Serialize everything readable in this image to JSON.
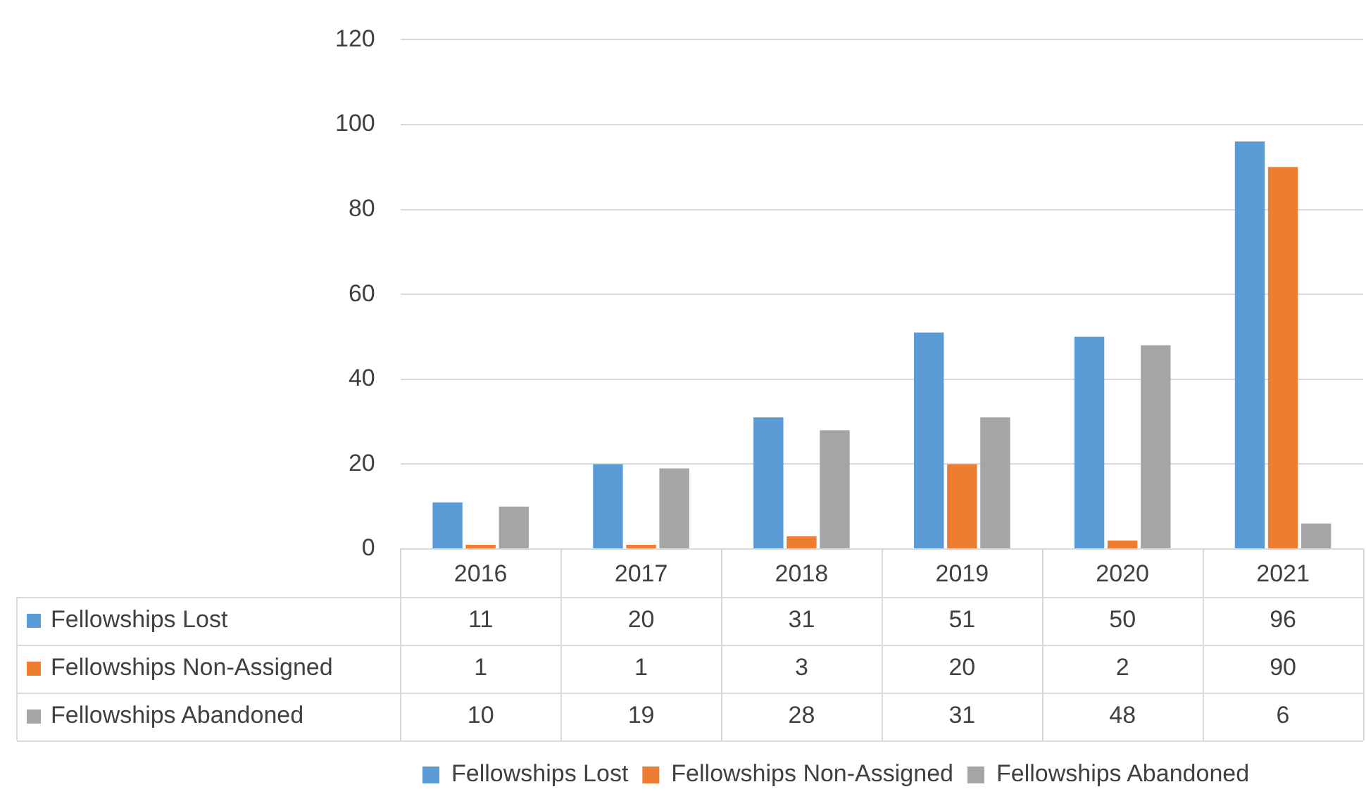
{
  "chart_data": {
    "type": "bar",
    "categories": [
      "2016",
      "2017",
      "2018",
      "2019",
      "2020",
      "2021"
    ],
    "series": [
      {
        "name": "Fellowships Lost",
        "color": "#5b9bd5",
        "values": [
          11,
          20,
          31,
          51,
          50,
          96
        ]
      },
      {
        "name": "Fellowships Non-Assigned",
        "color": "#ed7d31",
        "values": [
          1,
          1,
          3,
          20,
          2,
          90
        ]
      },
      {
        "name": "Fellowships Abandoned",
        "color": "#a5a5a5",
        "values": [
          10,
          19,
          28,
          31,
          48,
          6
        ]
      }
    ],
    "ylim": [
      0,
      120
    ],
    "yticks": [
      0,
      20,
      40,
      60,
      80,
      100,
      120
    ],
    "grid": "y",
    "legend": "bottom",
    "data_labels": true
  }
}
